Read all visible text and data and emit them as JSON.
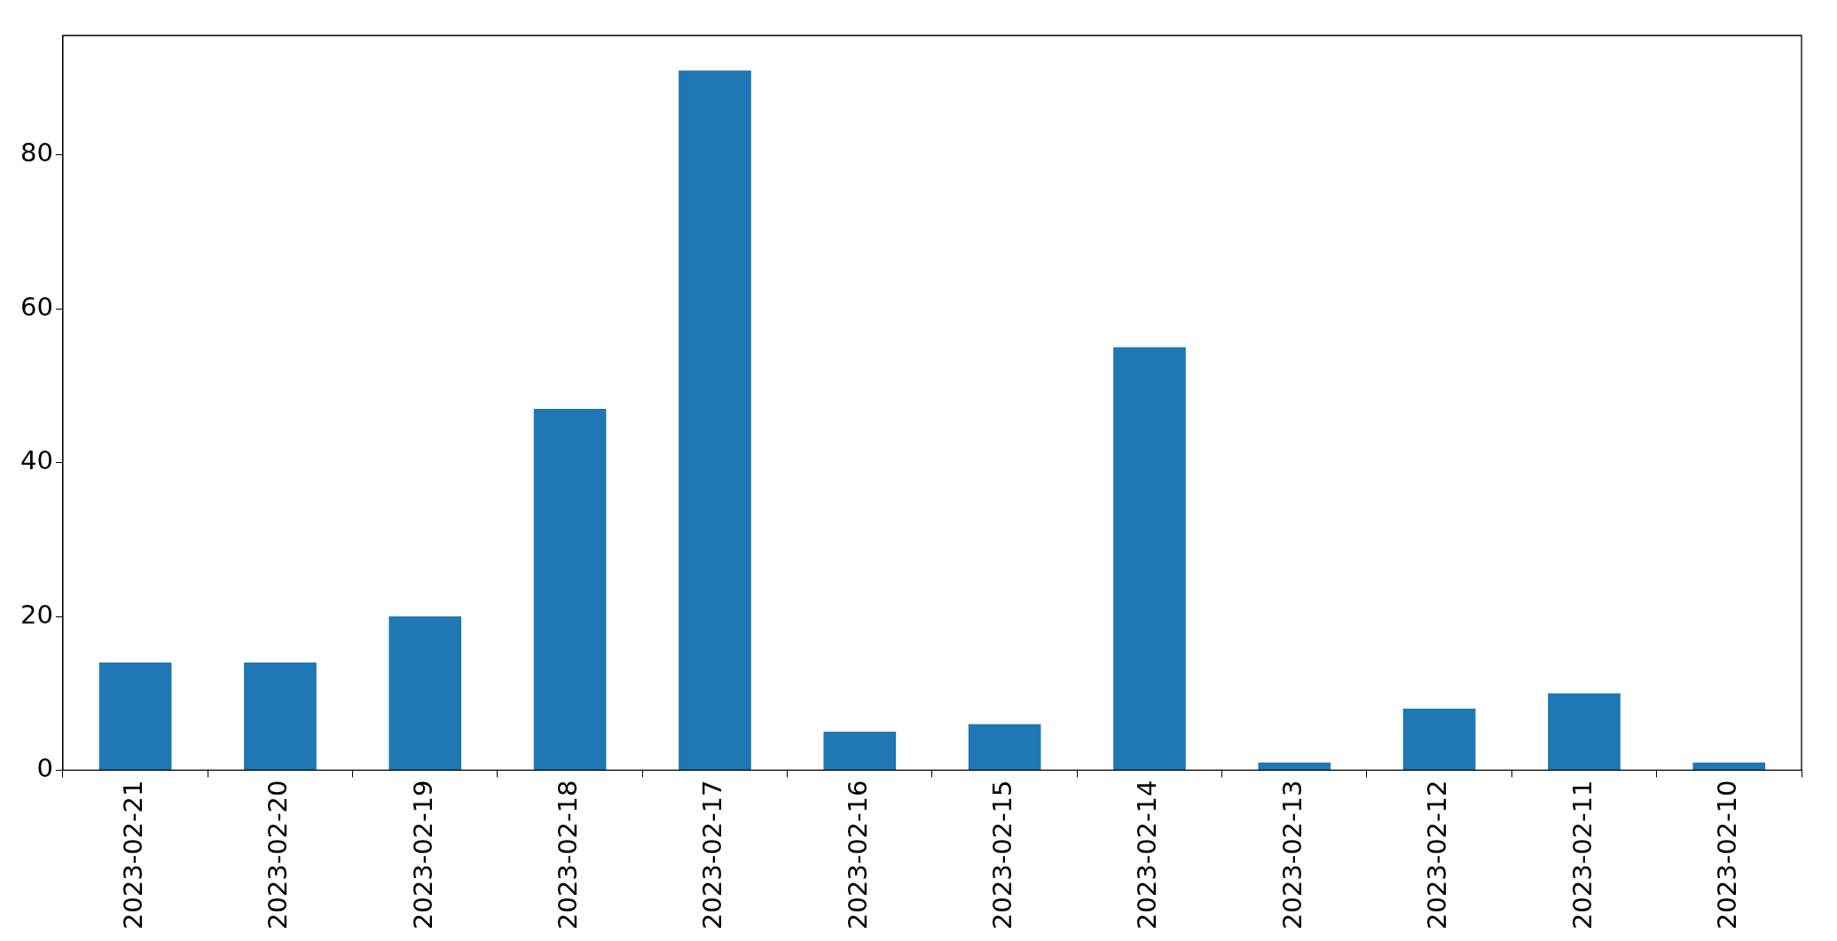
{
  "chart_data": {
    "type": "bar",
    "categories": [
      "2023-02-21",
      "2023-02-20",
      "2023-02-19",
      "2023-02-18",
      "2023-02-17",
      "2023-02-16",
      "2023-02-15",
      "2023-02-14",
      "2023-02-13",
      "2023-02-12",
      "2023-02-11",
      "2023-02-10"
    ],
    "values": [
      14,
      14,
      20,
      47,
      91,
      5,
      6,
      55,
      1,
      8,
      10,
      1
    ],
    "color": "#1f77b4",
    "ylim": [
      0,
      95.55
    ],
    "yticks": [
      0,
      20,
      40,
      60,
      80
    ],
    "grid": false,
    "legend": false
  }
}
